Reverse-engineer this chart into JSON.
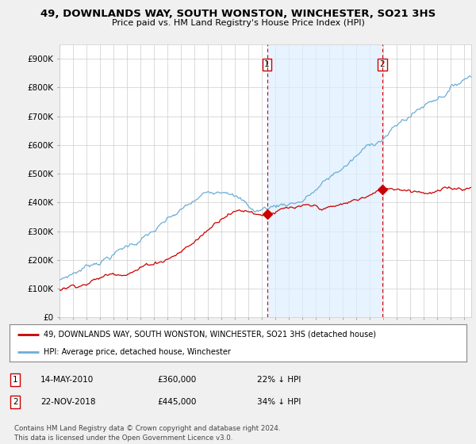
{
  "title": "49, DOWNLANDS WAY, SOUTH WONSTON, WINCHESTER, SO21 3HS",
  "subtitle": "Price paid vs. HM Land Registry's House Price Index (HPI)",
  "ylabel_ticks": [
    "£0",
    "£100K",
    "£200K",
    "£300K",
    "£400K",
    "£500K",
    "£600K",
    "£700K",
    "£800K",
    "£900K"
  ],
  "ytick_values": [
    0,
    100000,
    200000,
    300000,
    400000,
    500000,
    600000,
    700000,
    800000,
    900000
  ],
  "ylim": [
    0,
    950000
  ],
  "xlim_start": 1995.0,
  "xlim_end": 2025.5,
  "transaction1_x": 2010.37,
  "transaction1_y": 360000,
  "transaction2_x": 2018.9,
  "transaction2_y": 445000,
  "transaction1_date": "14-MAY-2010",
  "transaction1_price": "£360,000",
  "transaction1_hpi": "22% ↓ HPI",
  "transaction2_date": "22-NOV-2018",
  "transaction2_price": "£445,000",
  "transaction2_hpi": "34% ↓ HPI",
  "legend_label1": "49, DOWNLANDS WAY, SOUTH WONSTON, WINCHESTER, SO21 3HS (detached house)",
  "legend_label2": "HPI: Average price, detached house, Winchester",
  "footer": "Contains HM Land Registry data © Crown copyright and database right 2024.\nThis data is licensed under the Open Government Licence v3.0.",
  "hpi_color": "#6baed6",
  "price_color": "#cc0000",
  "shading_color": "#ddeeff",
  "background_color": "#f0f0f0",
  "plot_bg_color": "#ffffff"
}
